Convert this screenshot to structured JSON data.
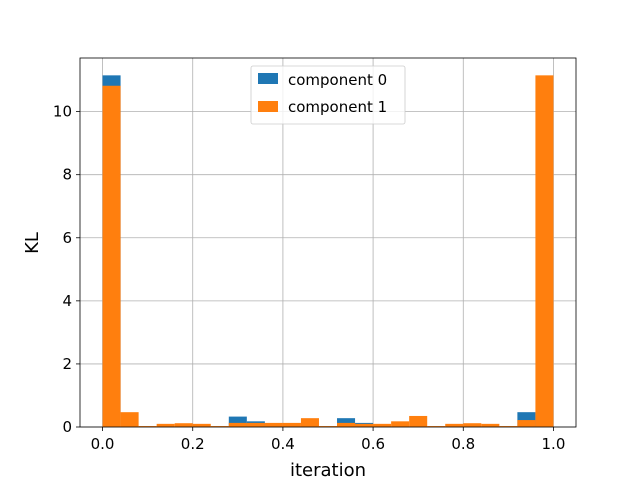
{
  "chart_data": {
    "type": "bar",
    "xlabel": "iteration",
    "ylabel": "KL",
    "xlim": [
      -0.05,
      1.05
    ],
    "ylim": [
      0,
      11.7
    ],
    "xticks": [
      0.0,
      0.2,
      0.4,
      0.6,
      0.8,
      1.0
    ],
    "xtick_labels": [
      "0.0",
      "0.2",
      "0.4",
      "0.6",
      "0.8",
      "1.0"
    ],
    "yticks": [
      0,
      2,
      4,
      6,
      8,
      10
    ],
    "ytick_labels": [
      "0",
      "2",
      "4",
      "6",
      "8",
      "10"
    ],
    "grid": true,
    "legend_position": "top-center",
    "bin_edges": [
      0.0,
      0.04,
      0.08,
      0.12,
      0.16,
      0.2,
      0.24,
      0.28,
      0.32,
      0.36,
      0.4,
      0.44,
      0.48,
      0.52,
      0.56,
      0.6,
      0.64,
      0.68,
      0.72,
      0.76,
      0.8,
      0.84,
      0.88,
      0.92,
      0.96,
      1.0
    ],
    "series": [
      {
        "name": "component 0",
        "color": "#1f77b4",
        "values": [
          11.15,
          0.0,
          0.0,
          0.0,
          0.0,
          0.0,
          0.0,
          0.33,
          0.18,
          0.0,
          0.0,
          0.0,
          0.0,
          0.28,
          0.13,
          0.0,
          0.0,
          0.0,
          0.0,
          0.0,
          0.0,
          0.0,
          0.0,
          0.47,
          0.0
        ]
      },
      {
        "name": "component 1",
        "color": "#ff7f0e",
        "values": [
          10.82,
          0.47,
          0.03,
          0.1,
          0.12,
          0.1,
          0.03,
          0.13,
          0.13,
          0.13,
          0.13,
          0.28,
          0.03,
          0.13,
          0.1,
          0.1,
          0.18,
          0.35,
          0.03,
          0.1,
          0.12,
          0.1,
          0.03,
          0.22,
          11.15
        ]
      }
    ]
  }
}
